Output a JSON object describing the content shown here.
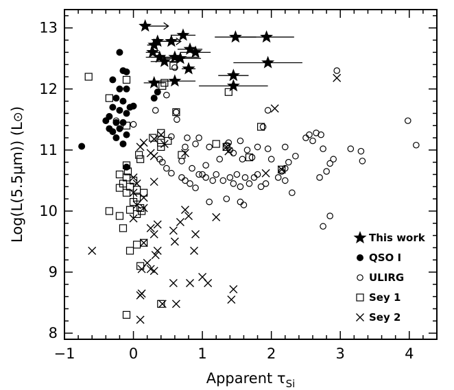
{
  "chart_data": {
    "type": "scatter",
    "xlabel": "Apparent τ",
    "xlabel_sub": "Si",
    "ylabel_main": "Log(L(5.5μm)) (L",
    "ylabel_sun": "⊙",
    "ylabel_close": ")",
    "xlim": [
      -1,
      4.4
    ],
    "ylim": [
      7.9,
      13.3
    ],
    "x_ticks": [
      -1,
      0,
      1,
      2,
      3,
      4
    ],
    "x_tick_labels": [
      "−1",
      "0",
      "1",
      "2",
      "3",
      "4"
    ],
    "y_ticks": [
      8,
      9,
      10,
      11,
      12,
      13
    ],
    "y_tick_labels": [
      "8",
      "9",
      "10",
      "11",
      "12",
      "13"
    ],
    "legend_position": "bottom-right",
    "series": [
      {
        "name": "This work",
        "marker": "star",
        "points": [
          {
            "x": 0.17,
            "y": 13.03,
            "lower_limit": true
          },
          {
            "x": 0.35,
            "y": 12.78,
            "lower_limit": true
          },
          {
            "x": 0.3,
            "y": 12.72,
            "xerr": 0.1
          },
          {
            "x": 0.55,
            "y": 12.78,
            "xerr": 0.12
          },
          {
            "x": 0.72,
            "y": 12.88,
            "xerr": 0.18
          },
          {
            "x": 1.48,
            "y": 12.85,
            "xerr": 0.3
          },
          {
            "x": 1.93,
            "y": 12.85,
            "xerr": 0.4
          },
          {
            "x": 0.28,
            "y": 12.6,
            "xerr": 0.1
          },
          {
            "x": 0.38,
            "y": 12.52,
            "xerr": 0.2
          },
          {
            "x": 0.6,
            "y": 12.52,
            "xerr": 0.35
          },
          {
            "x": 0.82,
            "y": 12.65,
            "xerr": 0.18
          },
          {
            "x": 0.9,
            "y": 12.6,
            "xerr": 0.22
          },
          {
            "x": 0.68,
            "y": 12.5,
            "xerr": 0.3
          },
          {
            "x": 0.45,
            "y": 12.45,
            "xerr": 0.2
          },
          {
            "x": 0.8,
            "y": 12.33,
            "xerr": 0.1
          },
          {
            "x": 1.95,
            "y": 12.43,
            "xerr": 0.5
          },
          {
            "x": 0.3,
            "y": 12.1,
            "xerr": 0.15
          },
          {
            "x": 0.6,
            "y": 12.13,
            "xerr": 0.3
          },
          {
            "x": 1.45,
            "y": 12.22,
            "xerr": 0.22
          },
          {
            "x": 1.45,
            "y": 12.05,
            "xerr": 0.5
          }
        ]
      },
      {
        "name": "QSO I",
        "marker": "filled-circle",
        "points": [
          {
            "x": -0.75,
            "y": 11.06
          },
          {
            "x": -0.2,
            "y": 12.6
          },
          {
            "x": -0.15,
            "y": 12.3
          },
          {
            "x": -0.1,
            "y": 12.28
          },
          {
            "x": -0.3,
            "y": 12.15
          },
          {
            "x": -0.2,
            "y": 12.0
          },
          {
            "x": -0.1,
            "y": 12.0
          },
          {
            "x": -0.25,
            "y": 11.85
          },
          {
            "x": -0.15,
            "y": 11.8
          },
          {
            "x": -0.3,
            "y": 11.7
          },
          {
            "x": -0.2,
            "y": 11.65
          },
          {
            "x": -0.35,
            "y": 11.55
          },
          {
            "x": -0.1,
            "y": 11.6
          },
          {
            "x": -0.25,
            "y": 11.45
          },
          {
            "x": -0.4,
            "y": 11.48
          },
          {
            "x": -0.15,
            "y": 11.45
          },
          {
            "x": -0.05,
            "y": 11.7
          },
          {
            "x": -0.3,
            "y": 11.3
          },
          {
            "x": -0.2,
            "y": 11.35
          },
          {
            "x": -0.1,
            "y": 11.25
          },
          {
            "x": -0.35,
            "y": 11.35
          },
          {
            "x": -0.25,
            "y": 11.2
          },
          {
            "x": -0.15,
            "y": 11.1
          },
          {
            "x": 0.0,
            "y": 11.72
          },
          {
            "x": 0.3,
            "y": 11.85
          },
          {
            "x": 0.35,
            "y": 11.95
          },
          {
            "x": -0.1,
            "y": 10.72
          }
        ]
      },
      {
        "name": "ULIRG",
        "marker": "open-circle",
        "points": [
          {
            "x": -0.25,
            "y": 11.48
          },
          {
            "x": 0.0,
            "y": 11.42
          },
          {
            "x": 0.32,
            "y": 11.65
          },
          {
            "x": 0.62,
            "y": 11.62
          },
          {
            "x": 0.6,
            "y": 12.35
          },
          {
            "x": 0.48,
            "y": 11.9
          },
          {
            "x": 0.63,
            "y": 11.5
          },
          {
            "x": 0.55,
            "y": 11.22
          },
          {
            "x": 0.75,
            "y": 11.05
          },
          {
            "x": 0.78,
            "y": 11.2
          },
          {
            "x": 0.95,
            "y": 11.2
          },
          {
            "x": 0.9,
            "y": 11.1
          },
          {
            "x": 1.1,
            "y": 11.05
          },
          {
            "x": 1.35,
            "y": 11.08
          },
          {
            "x": 1.55,
            "y": 11.15
          },
          {
            "x": 1.65,
            "y": 11.0
          },
          {
            "x": 1.8,
            "y": 11.05
          },
          {
            "x": 1.95,
            "y": 11.02
          },
          {
            "x": 1.72,
            "y": 10.88
          },
          {
            "x": 1.58,
            "y": 10.85
          },
          {
            "x": 1.45,
            "y": 10.95
          },
          {
            "x": 1.25,
            "y": 10.85
          },
          {
            "x": 1.05,
            "y": 10.75
          },
          {
            "x": 0.85,
            "y": 10.7
          },
          {
            "x": 0.7,
            "y": 10.55
          },
          {
            "x": 0.75,
            "y": 10.5
          },
          {
            "x": 0.82,
            "y": 10.45
          },
          {
            "x": 0.95,
            "y": 10.6
          },
          {
            "x": 1.05,
            "y": 10.55
          },
          {
            "x": 1.15,
            "y": 10.5
          },
          {
            "x": 1.2,
            "y": 10.6
          },
          {
            "x": 1.3,
            "y": 10.5
          },
          {
            "x": 1.4,
            "y": 10.55
          },
          {
            "x": 1.45,
            "y": 10.45
          },
          {
            "x": 1.5,
            "y": 10.6
          },
          {
            "x": 1.55,
            "y": 10.4
          },
          {
            "x": 1.62,
            "y": 10.55
          },
          {
            "x": 1.68,
            "y": 10.45
          },
          {
            "x": 1.75,
            "y": 10.55
          },
          {
            "x": 1.8,
            "y": 10.6
          },
          {
            "x": 1.85,
            "y": 10.4
          },
          {
            "x": 1.92,
            "y": 10.45
          },
          {
            "x": 2.0,
            "y": 10.85
          },
          {
            "x": 2.1,
            "y": 10.55
          },
          {
            "x": 2.15,
            "y": 10.65
          },
          {
            "x": 2.2,
            "y": 10.5
          },
          {
            "x": 2.25,
            "y": 10.8
          },
          {
            "x": 2.3,
            "y": 10.3
          },
          {
            "x": 2.35,
            "y": 10.9
          },
          {
            "x": 2.2,
            "y": 11.05
          },
          {
            "x": 2.5,
            "y": 11.2
          },
          {
            "x": 2.55,
            "y": 11.25
          },
          {
            "x": 2.6,
            "y": 11.15
          },
          {
            "x": 2.65,
            "y": 11.28
          },
          {
            "x": 2.72,
            "y": 11.25
          },
          {
            "x": 2.75,
            "y": 11.02
          },
          {
            "x": 2.8,
            "y": 10.65
          },
          {
            "x": 2.85,
            "y": 10.78
          },
          {
            "x": 2.9,
            "y": 10.85
          },
          {
            "x": 2.7,
            "y": 10.55
          },
          {
            "x": 2.75,
            "y": 9.75
          },
          {
            "x": 2.85,
            "y": 9.92
          },
          {
            "x": 3.15,
            "y": 11.02
          },
          {
            "x": 3.3,
            "y": 10.98
          },
          {
            "x": 3.32,
            "y": 10.82
          },
          {
            "x": 2.95,
            "y": 12.3
          },
          {
            "x": 3.98,
            "y": 11.48
          },
          {
            "x": 4.1,
            "y": 11.08
          },
          {
            "x": 1.0,
            "y": 10.6
          },
          {
            "x": 0.7,
            "y": 10.82
          },
          {
            "x": 0.42,
            "y": 10.8
          },
          {
            "x": 0.38,
            "y": 10.85
          },
          {
            "x": 1.38,
            "y": 11.12
          },
          {
            "x": 1.4,
            "y": 11.0
          },
          {
            "x": 1.88,
            "y": 11.38
          },
          {
            "x": 1.95,
            "y": 11.65
          },
          {
            "x": 1.1,
            "y": 10.15
          },
          {
            "x": 1.35,
            "y": 10.2
          },
          {
            "x": 1.55,
            "y": 10.15
          },
          {
            "x": 1.6,
            "y": 10.1
          },
          {
            "x": 0.9,
            "y": 10.38
          },
          {
            "x": 2.2,
            "y": 10.7
          },
          {
            "x": 0.55,
            "y": 10.62
          },
          {
            "x": 0.48,
            "y": 10.7
          }
        ]
      },
      {
        "name": "Sey 1",
        "marker": "open-square",
        "points": [
          {
            "x": -0.65,
            "y": 12.2
          },
          {
            "x": -0.35,
            "y": 11.85
          },
          {
            "x": -0.1,
            "y": 12.15
          },
          {
            "x": -0.1,
            "y": 11.4
          },
          {
            "x": 0.58,
            "y": 12.38
          },
          {
            "x": 0.45,
            "y": 12.1
          },
          {
            "x": 0.42,
            "y": 12.05
          },
          {
            "x": 1.38,
            "y": 11.95
          },
          {
            "x": 0.4,
            "y": 11.28
          },
          {
            "x": 0.4,
            "y": 11.12
          },
          {
            "x": 0.4,
            "y": 11.05
          },
          {
            "x": 0.5,
            "y": 11.15
          },
          {
            "x": 0.28,
            "y": 11.2
          },
          {
            "x": 0.7,
            "y": 10.92
          },
          {
            "x": 0.62,
            "y": 11.62
          },
          {
            "x": 1.2,
            "y": 11.1
          },
          {
            "x": 1.35,
            "y": 11.05
          },
          {
            "x": 1.68,
            "y": 10.88
          },
          {
            "x": 1.85,
            "y": 11.38
          },
          {
            "x": 2.15,
            "y": 10.68
          },
          {
            "x": 0.08,
            "y": 10.92
          },
          {
            "x": 0.1,
            "y": 10.85
          },
          {
            "x": -0.1,
            "y": 10.75
          },
          {
            "x": -0.08,
            "y": 10.65
          },
          {
            "x": -0.2,
            "y": 10.6
          },
          {
            "x": -0.1,
            "y": 10.55
          },
          {
            "x": 0.0,
            "y": 10.5
          },
          {
            "x": -0.15,
            "y": 10.45
          },
          {
            "x": -0.05,
            "y": 10.4
          },
          {
            "x": -0.2,
            "y": 10.38
          },
          {
            "x": 0.05,
            "y": 10.35
          },
          {
            "x": -0.1,
            "y": 10.3
          },
          {
            "x": 0.0,
            "y": 10.15
          },
          {
            "x": -0.05,
            "y": 10.02
          },
          {
            "x": 0.1,
            "y": 10.05
          },
          {
            "x": 0.05,
            "y": 9.95
          },
          {
            "x": -0.35,
            "y": 10.0
          },
          {
            "x": -0.2,
            "y": 9.92
          },
          {
            "x": -0.15,
            "y": 9.72
          },
          {
            "x": 0.12,
            "y": 10.0
          },
          {
            "x": -0.05,
            "y": 9.35
          },
          {
            "x": 0.05,
            "y": 9.45
          },
          {
            "x": 0.1,
            "y": 9.1
          },
          {
            "x": 0.15,
            "y": 9.48
          },
          {
            "x": -0.1,
            "y": 8.3
          },
          {
            "x": 0.4,
            "y": 8.48
          },
          {
            "x": 0.05,
            "y": 10.22
          },
          {
            "x": 0.15,
            "y": 10.3
          }
        ]
      },
      {
        "name": "Sey 2",
        "marker": "cross",
        "points": [
          {
            "x": 2.95,
            "y": 12.18
          },
          {
            "x": 2.05,
            "y": 11.68
          },
          {
            "x": 0.4,
            "y": 11.25
          },
          {
            "x": 0.3,
            "y": 11.18
          },
          {
            "x": 0.15,
            "y": 11.12
          },
          {
            "x": 0.1,
            "y": 11.05
          },
          {
            "x": 0.45,
            "y": 11.1
          },
          {
            "x": 0.25,
            "y": 10.95
          },
          {
            "x": 0.3,
            "y": 10.9
          },
          {
            "x": 0.75,
            "y": 10.95
          },
          {
            "x": 1.35,
            "y": 11.05
          },
          {
            "x": 1.38,
            "y": 10.98
          },
          {
            "x": 1.92,
            "y": 10.62
          },
          {
            "x": 2.15,
            "y": 10.68
          },
          {
            "x": 0.0,
            "y": 10.55
          },
          {
            "x": 0.05,
            "y": 10.45
          },
          {
            "x": 0.3,
            "y": 10.48
          },
          {
            "x": 0.0,
            "y": 10.3
          },
          {
            "x": 0.05,
            "y": 10.1
          },
          {
            "x": 0.15,
            "y": 10.05
          },
          {
            "x": 0.0,
            "y": 9.88
          },
          {
            "x": 0.25,
            "y": 9.72
          },
          {
            "x": 0.3,
            "y": 9.62
          },
          {
            "x": 0.35,
            "y": 9.78
          },
          {
            "x": 0.32,
            "y": 9.28
          },
          {
            "x": 0.35,
            "y": 9.35
          },
          {
            "x": 0.2,
            "y": 9.15
          },
          {
            "x": 0.25,
            "y": 9.05
          },
          {
            "x": 0.3,
            "y": 9.02
          },
          {
            "x": 0.15,
            "y": 9.48
          },
          {
            "x": 0.75,
            "y": 10.02
          },
          {
            "x": 0.8,
            "y": 9.92
          },
          {
            "x": 0.58,
            "y": 9.68
          },
          {
            "x": 0.6,
            "y": 9.5
          },
          {
            "x": 0.68,
            "y": 9.82
          },
          {
            "x": 0.9,
            "y": 9.62
          },
          {
            "x": 1.2,
            "y": 9.9
          },
          {
            "x": 0.88,
            "y": 9.35
          },
          {
            "x": -0.6,
            "y": 9.35
          },
          {
            "x": 0.1,
            "y": 8.62
          },
          {
            "x": 0.12,
            "y": 8.65
          },
          {
            "x": 0.1,
            "y": 8.22
          },
          {
            "x": 0.42,
            "y": 8.48
          },
          {
            "x": 0.58,
            "y": 8.82
          },
          {
            "x": 0.62,
            "y": 8.48
          },
          {
            "x": 0.82,
            "y": 8.82
          },
          {
            "x": 1.0,
            "y": 8.92
          },
          {
            "x": 1.08,
            "y": 8.82
          },
          {
            "x": 1.45,
            "y": 8.72
          },
          {
            "x": 1.42,
            "y": 8.55
          },
          {
            "x": 0.15,
            "y": 10.22
          },
          {
            "x": 0.12,
            "y": 9.05
          }
        ]
      }
    ]
  }
}
